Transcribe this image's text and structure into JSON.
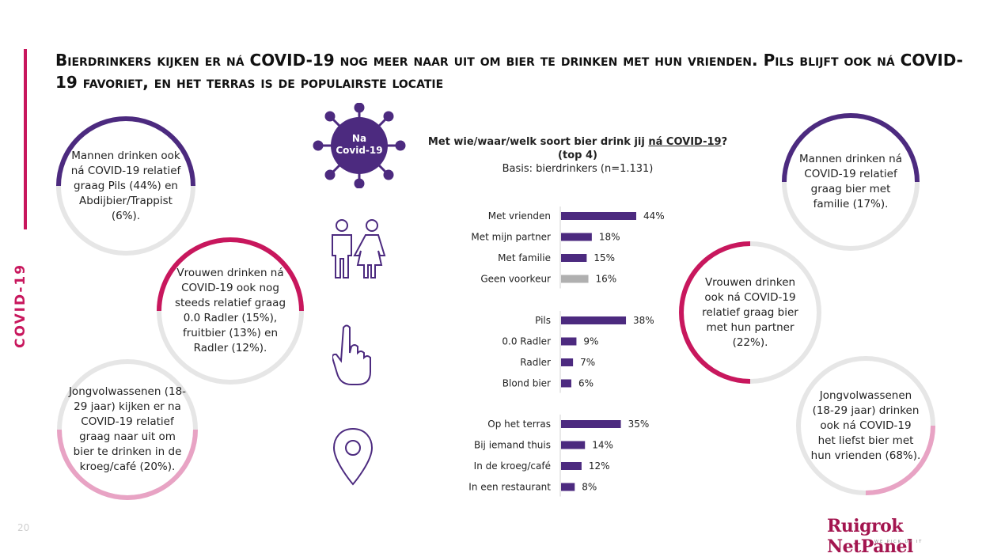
{
  "title": "Bierdrinkers kijken er ná COVID-19 nog meer naar uit om bier te drinken met hun vrienden. Pils blijft ook ná COVID-19 favoriet, en het terras is de populairste locatie",
  "side_label": "COVID-19",
  "page_number": "20",
  "virus_label": "Na Covid-19",
  "logo": {
    "text": "Ruigrok NetPanel",
    "tagline": "WE PICK UP IT"
  },
  "colors": {
    "accent": "#c8175d",
    "purple": "#4c2a7f",
    "grey_bar": "#b0b0b0",
    "pink": "#e8a3c4",
    "ring_grey": "#e6e6e6"
  },
  "bubbles": {
    "left1": "Mannen drinken ook ná COVID-19 relatief graag Pils (44%) en Abdijbier/Trappist (6%).",
    "left2": "Vrouwen drinken ná COVID-19 ook nog steeds relatief graag 0.0 Radler (15%), fruitbier (13%) en Radler (12%).",
    "left3": "Jongvolwassenen (18-29 jaar) kijken er na COVID-19 relatief graag naar uit om bier te drinken in de kroeg/café (20%).",
    "right1": "Mannen drinken ná COVID-19 relatief graag bier met familie (17%).",
    "right2": "Vrouwen drinken ook ná COVID-19 relatief graag bier met hun partner (22%).",
    "right3": "Jongvolwassenen (18-29 jaar) drinken ook ná COVID-19 het liefst bier met hun vrienden (68%)."
  },
  "chart_title": {
    "question_pre": "Met wie/waar/welk soort bier drink jij ",
    "question_underlined": "ná COVID-19",
    "question_post": "?",
    "subtitle": "(top 4)",
    "basis": "Basis: bierdrinkers (n=1.131)"
  },
  "chart_data": {
    "type": "bar",
    "orientation": "horizontal",
    "unit": "%",
    "groups": [
      {
        "categories": [
          "Met vrienden",
          "Met mijn partner",
          "Met familie",
          "Geen voorkeur"
        ],
        "values": [
          44,
          18,
          15,
          16
        ],
        "colors": [
          "#4c2a7f",
          "#4c2a7f",
          "#4c2a7f",
          "#b0b0b0"
        ]
      },
      {
        "categories": [
          "Pils",
          "0.0 Radler",
          "Radler",
          "Blond bier"
        ],
        "values": [
          38,
          9,
          7,
          6
        ],
        "colors": [
          "#4c2a7f",
          "#4c2a7f",
          "#4c2a7f",
          "#4c2a7f"
        ]
      },
      {
        "categories": [
          "Op het terras",
          "Bij iemand thuis",
          "In de kroeg/café",
          "In een restaurant"
        ],
        "values": [
          35,
          14,
          12,
          8
        ],
        "colors": [
          "#4c2a7f",
          "#4c2a7f",
          "#4c2a7f",
          "#4c2a7f"
        ]
      }
    ],
    "xlim": [
      0,
      44
    ]
  }
}
